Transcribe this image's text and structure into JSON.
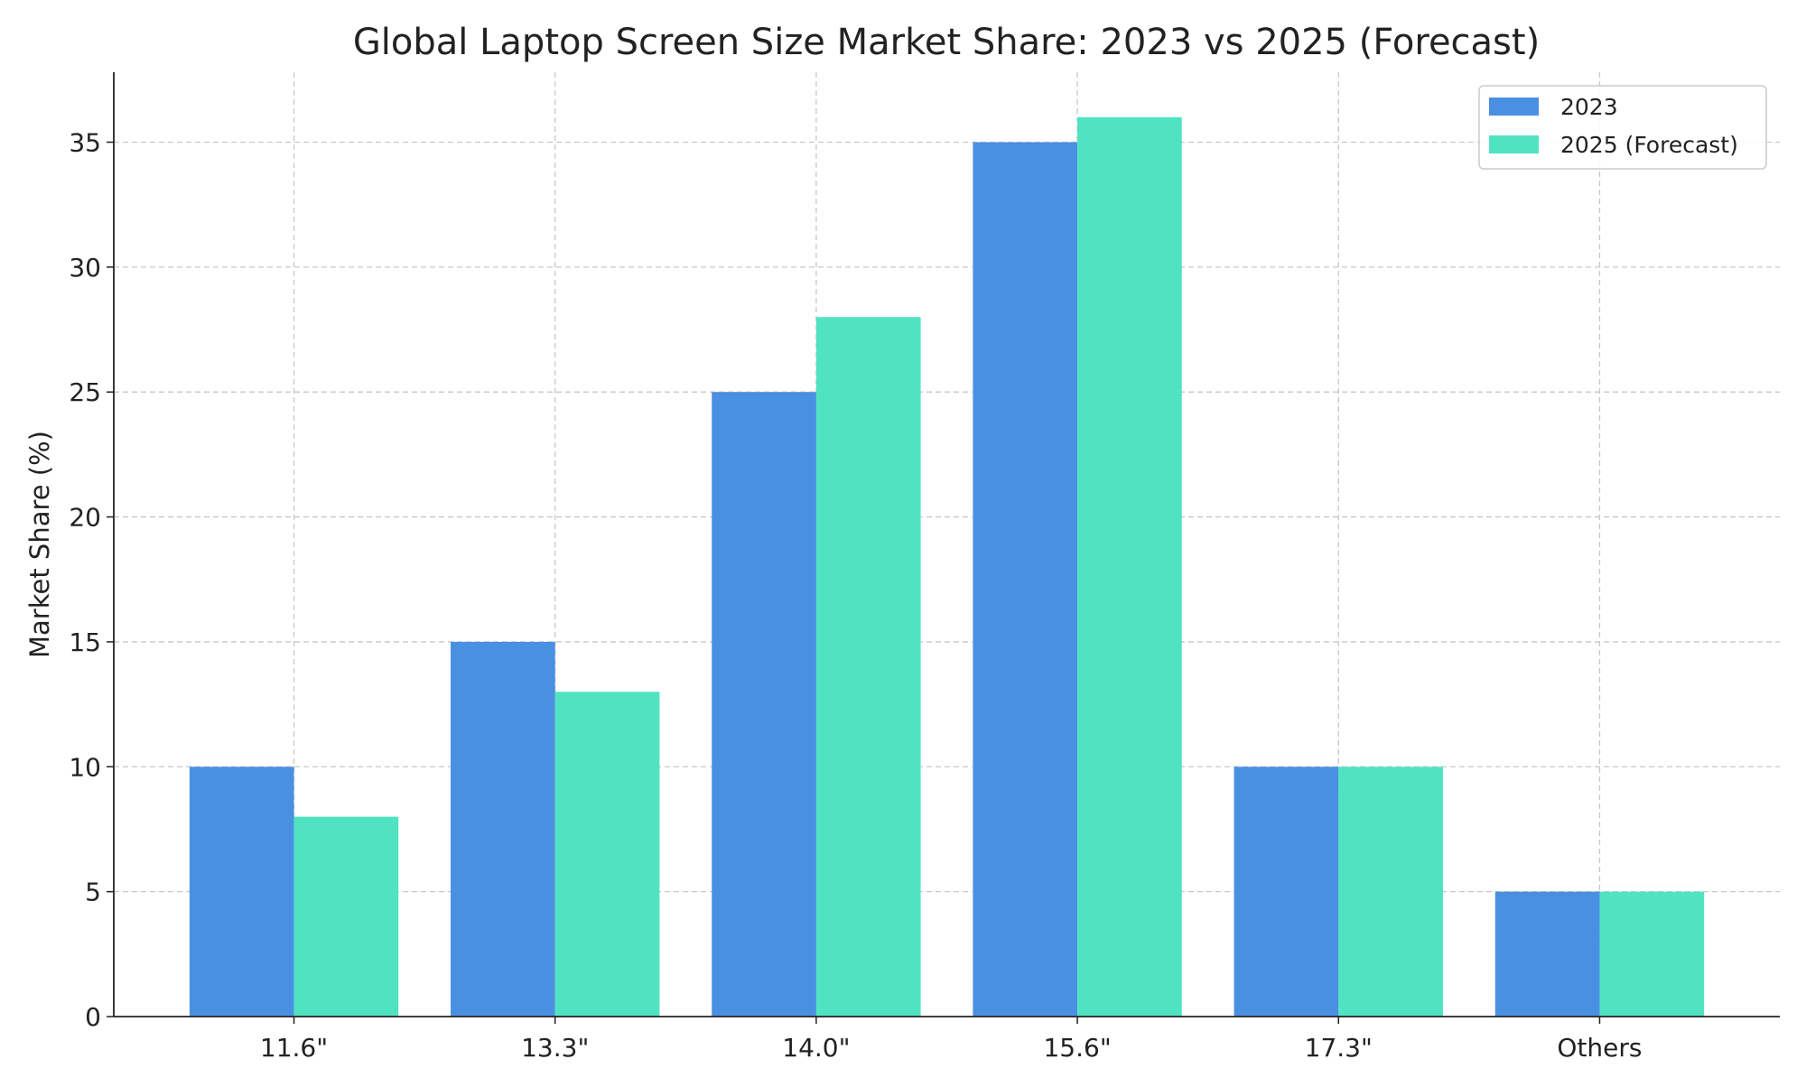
{
  "chart_data": {
    "type": "bar",
    "title": "Global Laptop Screen Size Market Share: 2023 vs 2025 (Forecast)",
    "xlabel": "",
    "ylabel": "Market Share (%)",
    "categories": [
      "11.6\"",
      "13.3\"",
      "14.0\"",
      "15.6\"",
      "17.3\"",
      "Others"
    ],
    "series": [
      {
        "name": "2023",
        "color": "#4a90e2",
        "values": [
          10,
          15,
          25,
          35,
          10,
          5
        ]
      },
      {
        "name": "2025 (Forecast)",
        "color": "#50e3c2",
        "values": [
          8,
          13,
          28,
          36,
          10,
          5
        ]
      }
    ],
    "ylim": [
      0,
      37.8
    ],
    "yticks": [
      0,
      5,
      10,
      15,
      20,
      25,
      30,
      35
    ],
    "grid": true,
    "legend": "top-right"
  }
}
